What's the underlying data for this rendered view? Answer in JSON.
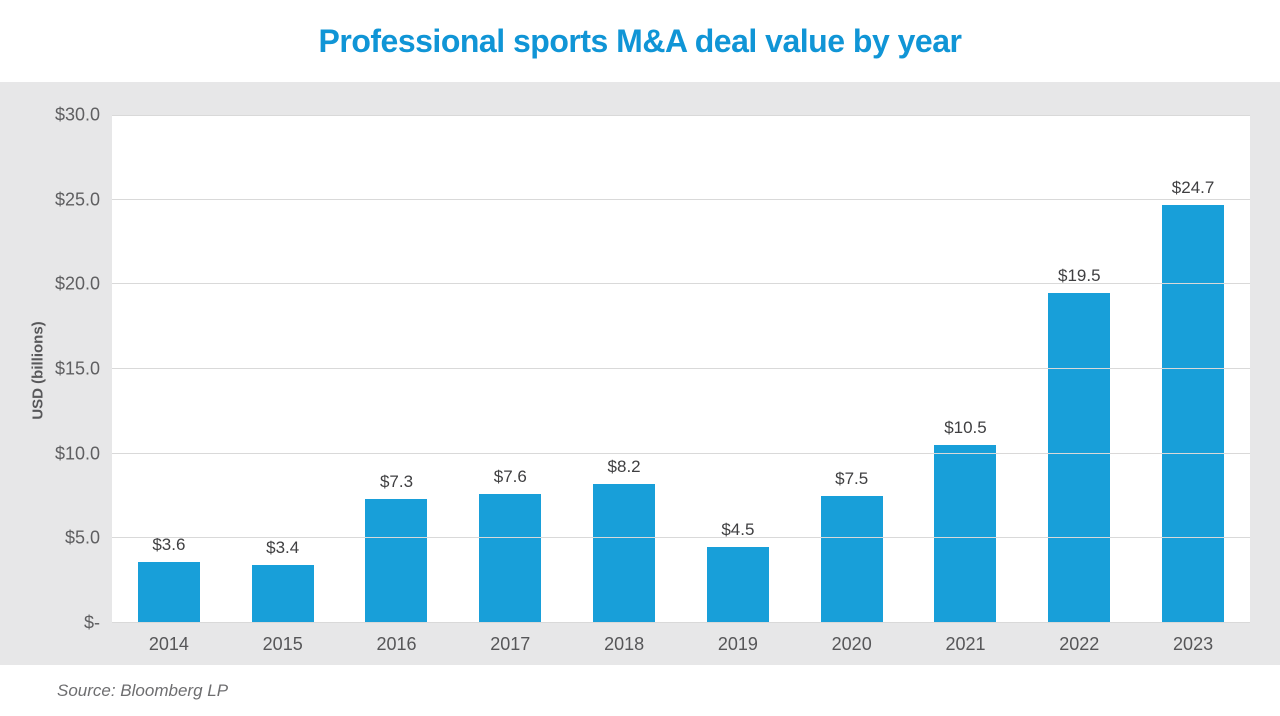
{
  "title": "Professional sports M&A deal value by year",
  "source_note": "Source: Bloomberg LP",
  "colors": {
    "title_blue": "#1095d6",
    "bar_blue": "#189fd9",
    "band_gray": "#e7e7e8",
    "gridline_gray": "#d9d9d9"
  },
  "chart_data": {
    "type": "bar",
    "title": "Professional sports M&A deal value by year",
    "categories": [
      "2014",
      "2015",
      "2016",
      "2017",
      "2018",
      "2019",
      "2020",
      "2021",
      "2022",
      "2023"
    ],
    "values": [
      3.6,
      3.4,
      7.3,
      7.6,
      8.2,
      4.5,
      7.5,
      10.5,
      19.5,
      24.7
    ],
    "bar_labels": [
      "$3.6",
      "$3.4",
      "$7.3",
      "$7.6",
      "$8.2",
      "$4.5",
      "$7.5",
      "$10.5",
      "$19.5",
      "$24.7"
    ],
    "xlabel": "",
    "ylabel": "USD (billions)",
    "ylim": [
      0,
      30
    ],
    "grid": "horizontal",
    "legend": "none",
    "yticks": [
      {
        "value": 30,
        "label": "$30.0"
      },
      {
        "value": 25,
        "label": "$25.0"
      },
      {
        "value": 20,
        "label": "$20.0"
      },
      {
        "value": 15,
        "label": "$15.0"
      },
      {
        "value": 10,
        "label": "$10.0"
      },
      {
        "value": 5,
        "label": "$5.0"
      },
      {
        "value": 0,
        "label": "$-"
      }
    ]
  }
}
